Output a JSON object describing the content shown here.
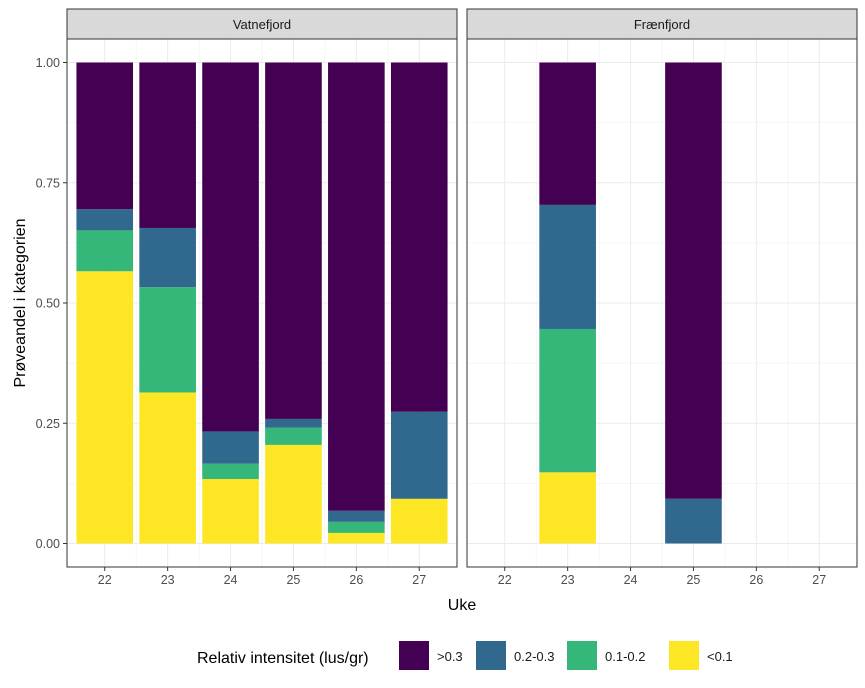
{
  "chart_data": {
    "type": "bar",
    "stacked": true,
    "facet_labels": [
      "Vatnefjord",
      "Frænfjord"
    ],
    "categories": [
      "22",
      "23",
      "24",
      "25",
      "26",
      "27"
    ],
    "xlabel": "Uke",
    "ylabel": "Prøveandel i kategorien",
    "ylim": [
      0,
      1
    ],
    "y_ticks": [
      "0.00",
      "0.25",
      "0.50",
      "0.75",
      "1.00"
    ],
    "legend": {
      "title": "Relativ intensitet (lus/gr)",
      "position": "bottom",
      "items": [
        {
          "label": ">0.3",
          "color": "#440154"
        },
        {
          "label": "0.2-0.3",
          "color": "#31688E"
        },
        {
          "label": "0.1-0.2",
          "color": "#35B779"
        },
        {
          "label": "<0.1",
          "color": "#FDE725"
        }
      ]
    },
    "panels": [
      {
        "name": "Vatnefjord",
        "bars": [
          {
            "week": "22",
            "<0.1": 0.566,
            "0.1-0.2": 0.085,
            "0.2-0.3": 0.044,
            ">0.3": 0.305
          },
          {
            "week": "23",
            "<0.1": 0.314,
            "0.1-0.2": 0.219,
            "0.2-0.3": 0.123,
            ">0.3": 0.344
          },
          {
            "week": "24",
            "<0.1": 0.134,
            "0.1-0.2": 0.032,
            "0.2-0.3": 0.067,
            ">0.3": 0.767
          },
          {
            "week": "25",
            "<0.1": 0.205,
            "0.1-0.2": 0.036,
            "0.2-0.3": 0.018,
            ">0.3": 0.741
          },
          {
            "week": "26",
            "<0.1": 0.022,
            "0.1-0.2": 0.023,
            "0.2-0.3": 0.023,
            ">0.3": 0.932
          },
          {
            "week": "27",
            "<0.1": 0.093,
            "0.1-0.2": 0.0,
            "0.2-0.3": 0.181,
            ">0.3": 0.726
          }
        ]
      },
      {
        "name": "Frænfjord",
        "bars": [
          {
            "week": "23",
            "<0.1": 0.148,
            "0.1-0.2": 0.298,
            "0.2-0.3": 0.258,
            ">0.3": 0.296
          },
          {
            "week": "25",
            "<0.1": 0.0,
            "0.1-0.2": 0.0,
            "0.2-0.3": 0.093,
            ">0.3": 0.907
          }
        ]
      }
    ]
  }
}
